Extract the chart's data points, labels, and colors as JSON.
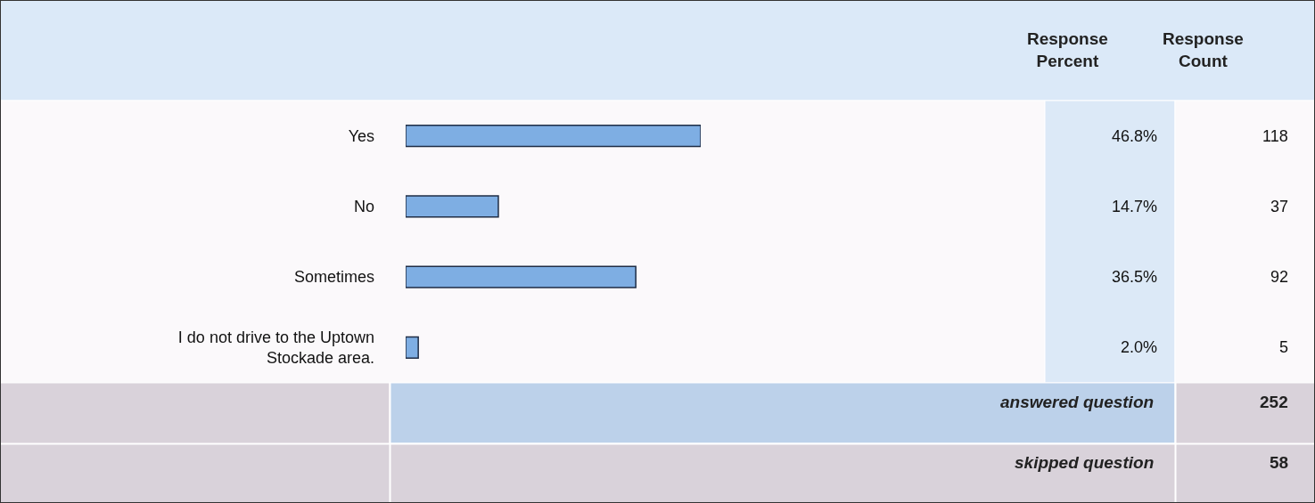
{
  "chart_data": {
    "type": "bar",
    "orientation": "horizontal",
    "categories": [
      "Yes",
      "No",
      "Sometimes",
      "I do not drive to the Uptown Stockade area."
    ],
    "values": [
      46.8,
      14.7,
      36.5,
      2.0
    ],
    "value_labels": [
      "46.8%",
      "14.7%",
      "36.5%",
      "2.0%"
    ],
    "color": "#7eaee3",
    "tick_labels": "y",
    "grid": false,
    "legend": false,
    "annotations": [
      "Response Percent",
      "Response Count",
      "118",
      "37",
      "92",
      "5",
      "answered question",
      "252",
      "skipped question",
      "58"
    ]
  }
}
